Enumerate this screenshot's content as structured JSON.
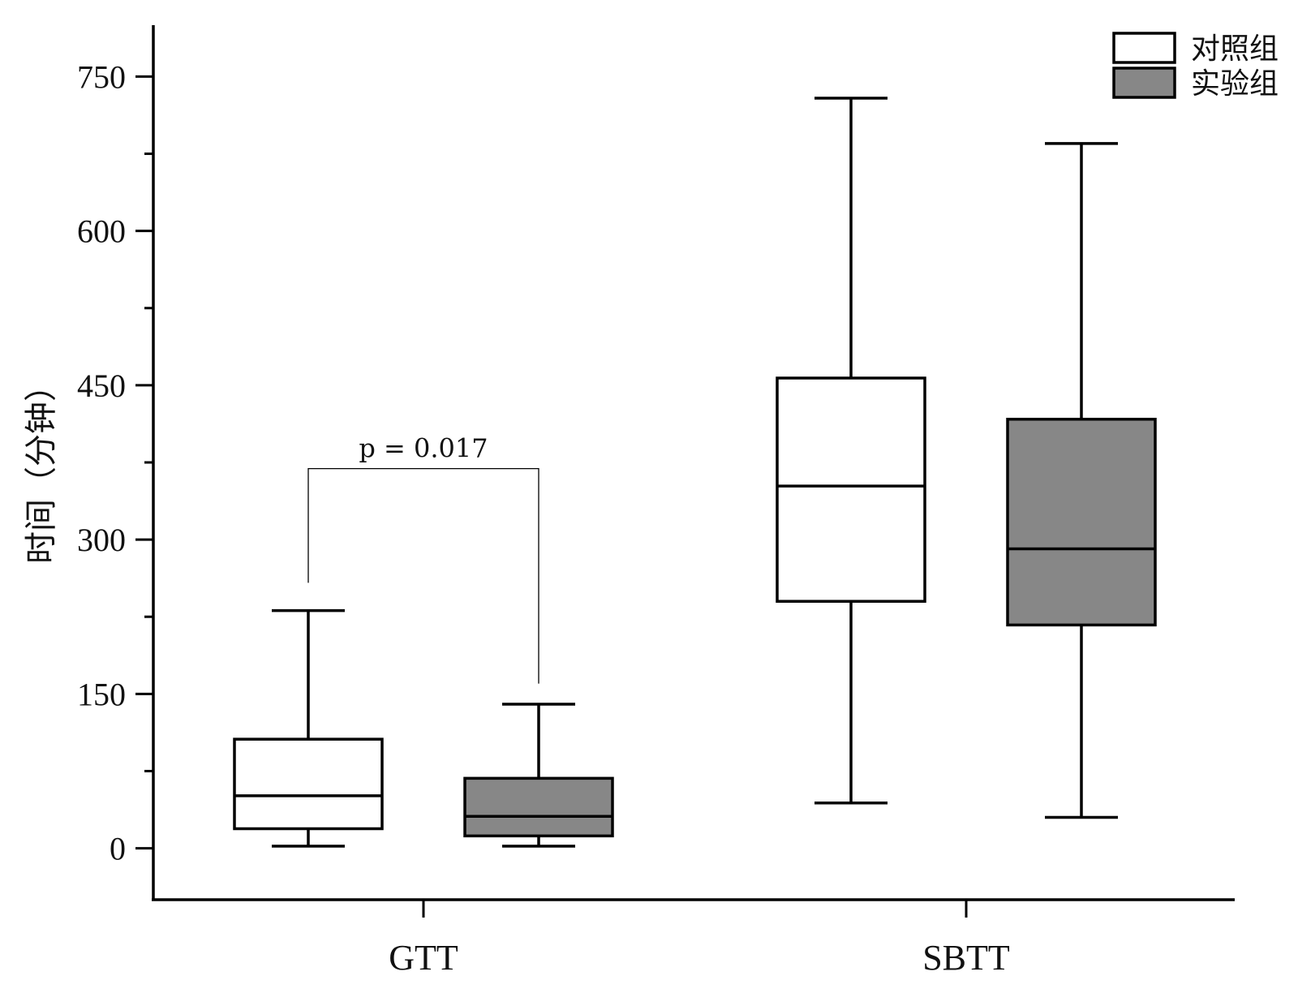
{
  "chart_data": {
    "type": "box",
    "title": "",
    "xlabel": "",
    "ylabel": "时间（分钟）",
    "categories": [
      "GTT",
      "SBTT"
    ],
    "ylim": [
      -50,
      800
    ],
    "yticks": [
      0,
      150,
      300,
      450,
      600,
      750
    ],
    "yminor_ticks": [
      75,
      225,
      375,
      525,
      675
    ],
    "grid": false,
    "legend": "top-right",
    "series": [
      {
        "name": "对照组",
        "color": "#ffffff",
        "boxes": [
          {
            "min": 2,
            "q1": 19,
            "median": 51,
            "q3": 106,
            "max": 231
          },
          {
            "min": 44,
            "q1": 240,
            "median": 352,
            "q3": 457,
            "max": 729
          }
        ]
      },
      {
        "name": "实验组",
        "color": "#878787",
        "boxes": [
          {
            "min": 2,
            "q1": 12,
            "median": 31,
            "q3": 68,
            "max": 140
          },
          {
            "min": 30,
            "q1": 217,
            "median": 291,
            "q3": 417,
            "max": 685
          }
        ]
      }
    ],
    "annotation": {
      "text": "p = 0.017",
      "bracket_top": 369,
      "left_leg_end": 258,
      "right_leg_end": 160
    }
  }
}
